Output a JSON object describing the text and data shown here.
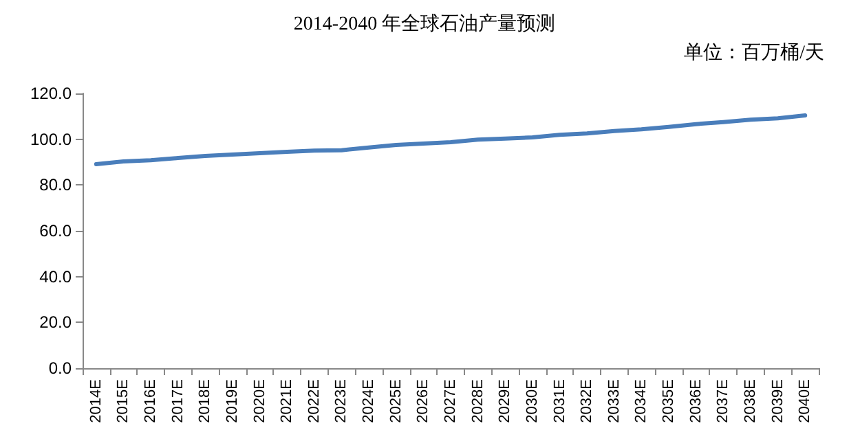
{
  "chart_data": {
    "type": "line",
    "title": "2014-2040 年全球石油产量预测",
    "annotations": [
      "单位：百万桶/天"
    ],
    "categories": [
      "2014E",
      "2015E",
      "2016E",
      "2017E",
      "2018E",
      "2019E",
      "2020E",
      "2021E",
      "2022E",
      "2023E",
      "2024E",
      "2025E",
      "2026E",
      "2027E",
      "2028E",
      "2029E",
      "2030E",
      "2031E",
      "2032E",
      "2033E",
      "2034E",
      "2035E",
      "2036E",
      "2037E",
      "2038E",
      "2039E",
      "2040E"
    ],
    "series": [
      {
        "color": "#4a7ebb",
        "values": [
          89.1,
          90.3,
          90.8,
          91.8,
          92.7,
          93.3,
          93.9,
          94.5,
          95.0,
          95.2,
          96.4,
          97.5,
          98.1,
          98.7,
          99.8,
          100.3,
          100.8,
          101.9,
          102.5,
          103.6,
          104.3,
          105.4,
          106.6,
          107.5,
          108.5,
          109.1,
          110.4
        ]
      }
    ],
    "ylim": [
      0,
      120
    ],
    "yticks": [
      {
        "value": 0,
        "label": "0.0"
      },
      {
        "value": 20,
        "label": "20.0"
      },
      {
        "value": 40,
        "label": "40.0"
      },
      {
        "value": 60,
        "label": "60.0"
      },
      {
        "value": 80,
        "label": "80.0"
      },
      {
        "value": 100,
        "label": "100.0"
      },
      {
        "value": 120,
        "label": "120.0"
      }
    ],
    "grid": false,
    "marker": "none",
    "line_style": "solid"
  }
}
